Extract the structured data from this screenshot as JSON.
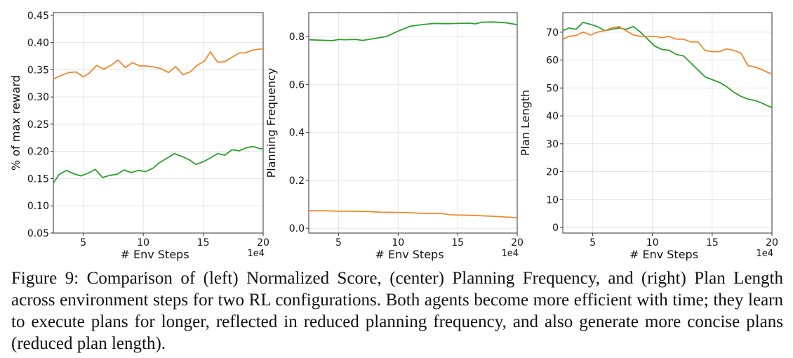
{
  "chart_data": [
    {
      "type": "line",
      "title": "",
      "xlabel": "# Env Steps",
      "ylabel": "% of max reward",
      "x_offset_label": "1e4",
      "xlim": [
        2.5,
        20
      ],
      "ylim": [
        0.05,
        0.455
      ],
      "xticks": [
        5,
        10,
        15,
        20
      ],
      "xtick_labels": [
        "5",
        "10",
        "15",
        "20"
      ],
      "yticks": [
        0.05,
        0.1,
        0.15,
        0.2,
        0.25,
        0.3,
        0.35,
        0.4,
        0.45
      ],
      "ytick_labels": [
        "0.05",
        "0.10",
        "0.15",
        "0.20",
        "0.25",
        "0.30",
        "0.35",
        "0.40",
        "0.45"
      ],
      "grid": true,
      "series": [
        {
          "color": "#ee8a2e",
          "x": [
            2.5,
            3.2,
            3.8,
            4.4,
            5.0,
            5.5,
            6.1,
            6.7,
            7.3,
            7.9,
            8.5,
            9.1,
            9.7,
            10.3,
            10.9,
            11.5,
            12.1,
            12.7,
            13.3,
            13.9,
            14.5,
            15.1,
            15.6,
            16.2,
            16.8,
            17.4,
            18.0,
            18.5,
            19.1,
            19.7,
            20.0
          ],
          "y": [
            0.333,
            0.34,
            0.345,
            0.346,
            0.337,
            0.344,
            0.358,
            0.351,
            0.358,
            0.368,
            0.354,
            0.363,
            0.357,
            0.357,
            0.355,
            0.352,
            0.345,
            0.356,
            0.341,
            0.346,
            0.358,
            0.366,
            0.383,
            0.364,
            0.365,
            0.373,
            0.381,
            0.381,
            0.386,
            0.388,
            0.388
          ]
        },
        {
          "color": "#2ca02c",
          "x": [
            2.5,
            3.0,
            3.6,
            4.2,
            4.8,
            5.4,
            6.0,
            6.6,
            7.2,
            7.8,
            8.4,
            9.0,
            9.6,
            10.2,
            10.8,
            11.4,
            12.0,
            12.6,
            13.2,
            13.8,
            14.4,
            15.0,
            15.6,
            16.2,
            16.8,
            17.4,
            18.0,
            18.6,
            19.2,
            19.7,
            20.0
          ],
          "y": [
            0.142,
            0.158,
            0.165,
            0.159,
            0.155,
            0.16,
            0.167,
            0.152,
            0.156,
            0.158,
            0.166,
            0.161,
            0.165,
            0.163,
            0.169,
            0.18,
            0.188,
            0.196,
            0.191,
            0.185,
            0.176,
            0.181,
            0.188,
            0.196,
            0.193,
            0.203,
            0.201,
            0.207,
            0.209,
            0.205,
            0.205
          ]
        }
      ]
    },
    {
      "type": "line",
      "title": "",
      "xlabel": "# Env Steps",
      "ylabel": "Planning Frequency",
      "x_offset_label": "1e4",
      "xlim": [
        2.5,
        20
      ],
      "ylim": [
        -0.02,
        0.9
      ],
      "xticks": [
        5,
        10,
        15,
        20
      ],
      "xtick_labels": [
        "5",
        "10",
        "15",
        "20"
      ],
      "yticks": [
        0.0,
        0.2,
        0.4,
        0.6,
        0.8
      ],
      "ytick_labels": [
        "0.0",
        "0.2",
        "0.4",
        "0.6",
        "0.8"
      ],
      "grid": true,
      "series": [
        {
          "color": "#2ca02c",
          "x": [
            2.5,
            3.5,
            4.5,
            5.0,
            5.5,
            6.5,
            7.0,
            8.0,
            9.0,
            10.0,
            11.0,
            12.0,
            13.0,
            14.0,
            15.0,
            16.0,
            16.5,
            17.0,
            18.0,
            19.0,
            20.0
          ],
          "y": [
            0.787,
            0.785,
            0.783,
            0.788,
            0.787,
            0.788,
            0.784,
            0.792,
            0.8,
            0.823,
            0.843,
            0.85,
            0.855,
            0.854,
            0.855,
            0.856,
            0.853,
            0.86,
            0.861,
            0.858,
            0.85
          ]
        },
        {
          "color": "#ee8a2e",
          "x": [
            2.5,
            4.0,
            5.0,
            6.0,
            7.5,
            8.5,
            10.0,
            11.0,
            12.0,
            13.5,
            14.5,
            16.0,
            17.0,
            18.0,
            19.0,
            20.0
          ],
          "y": [
            0.073,
            0.073,
            0.071,
            0.071,
            0.07,
            0.067,
            0.066,
            0.065,
            0.062,
            0.062,
            0.056,
            0.054,
            0.052,
            0.05,
            0.047,
            0.044
          ]
        }
      ]
    },
    {
      "type": "line",
      "title": "",
      "xlabel": "# Env Steps",
      "ylabel": "Plan Length",
      "x_offset_label": "1e4",
      "xlim": [
        2.5,
        20
      ],
      "ylim": [
        -2,
        77
      ],
      "xticks": [
        5,
        10,
        15,
        20
      ],
      "xtick_labels": [
        "5",
        "10",
        "15",
        "20"
      ],
      "yticks": [
        0,
        10,
        20,
        30,
        40,
        50,
        60,
        70
      ],
      "ytick_labels": [
        "0",
        "10",
        "20",
        "30",
        "40",
        "50",
        "60",
        "70"
      ],
      "grid": true,
      "series": [
        {
          "color": "#2ca02c",
          "x": [
            2.5,
            3.0,
            3.6,
            4.2,
            4.8,
            5.4,
            6.0,
            6.6,
            7.2,
            7.8,
            8.4,
            9.0,
            9.6,
            10.2,
            10.8,
            11.4,
            12.0,
            12.6,
            13.2,
            13.8,
            14.4,
            15.0,
            15.6,
            16.2,
            16.8,
            17.4,
            18.0,
            18.6,
            19.2,
            19.7,
            20.0
          ],
          "y": [
            70.5,
            71.5,
            71.0,
            73.5,
            72.8,
            72.0,
            70.5,
            71.0,
            71.5,
            71.0,
            72.0,
            70.0,
            67.5,
            65.0,
            63.8,
            63.5,
            62.0,
            61.5,
            59.0,
            56.5,
            54.0,
            53.0,
            52.0,
            50.5,
            48.5,
            47.0,
            46.0,
            45.5,
            44.5,
            43.5,
            43.0
          ]
        },
        {
          "color": "#ee8a2e",
          "x": [
            2.5,
            3.0,
            3.6,
            4.2,
            4.8,
            5.4,
            6.0,
            6.6,
            7.2,
            7.8,
            8.4,
            9.0,
            9.6,
            10.2,
            10.8,
            11.4,
            12.0,
            12.6,
            13.2,
            13.8,
            14.4,
            15.0,
            15.6,
            16.2,
            16.8,
            17.4,
            18.0,
            18.6,
            19.2,
            19.7,
            20.0
          ],
          "y": [
            67.5,
            68.5,
            68.8,
            70.0,
            69.0,
            70.0,
            70.5,
            71.5,
            72.0,
            70.5,
            69.0,
            68.5,
            68.5,
            68.5,
            68.0,
            68.5,
            67.5,
            67.5,
            66.5,
            66.5,
            63.5,
            63.0,
            63.0,
            64.0,
            63.5,
            62.5,
            58.0,
            57.5,
            56.5,
            55.5,
            55.0
          ]
        }
      ]
    }
  ],
  "caption": {
    "text": "Figure 9: Comparison of (left) Normalized Score, (center) Planning Frequency, and (right) Plan Length across environment steps for two RL configurations. Both agents become more efficient with time; they learn to execute plans for longer, reflected in reduced planning frequency, and also generate more concise plans (reduced plan length)."
  }
}
